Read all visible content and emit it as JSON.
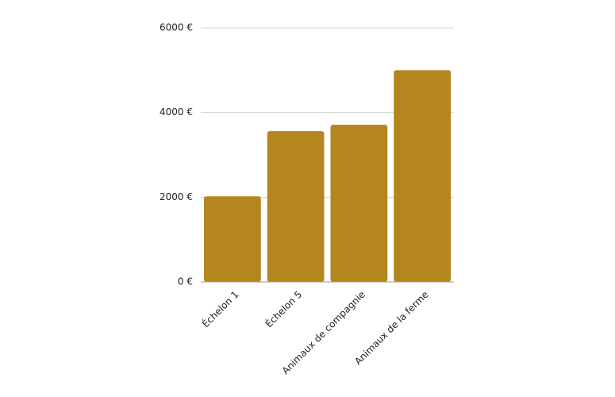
{
  "chart_data": {
    "type": "bar",
    "categories": [
      "Échelon 1",
      "Échelon 5",
      "Animaux de compagnie",
      "Animaux de la ferme"
    ],
    "values": [
      2020,
      3560,
      3710,
      5000
    ],
    "color": "#b5851f",
    "ylim": [
      0,
      6000
    ],
    "yticks": [
      {
        "value": 0,
        "label": "0 €"
      },
      {
        "value": 2000,
        "label": "2000 €"
      },
      {
        "value": 4000,
        "label": "4000 €"
      },
      {
        "value": 6000,
        "label": "6000 €"
      }
    ],
    "grid": true
  }
}
